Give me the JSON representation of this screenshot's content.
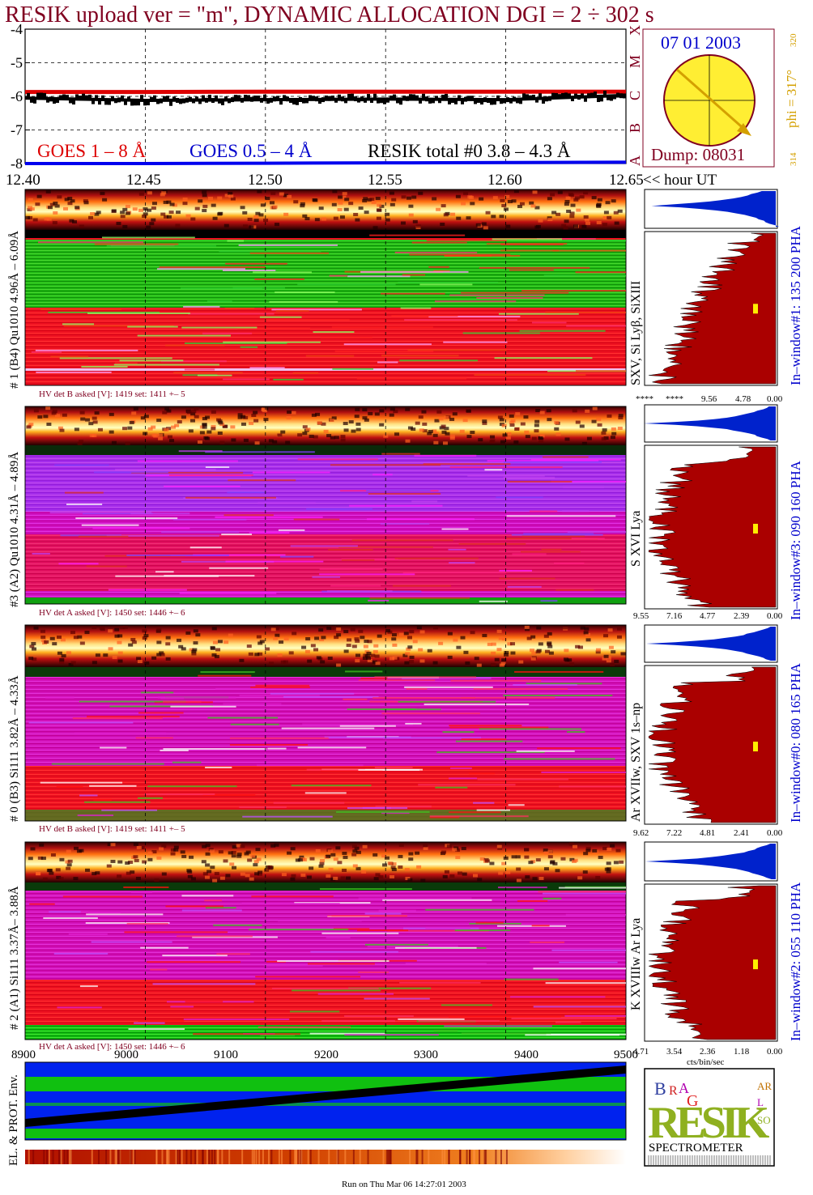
{
  "header": {
    "title": "RESIK upload ver = \"m\", DYNAMIC ALLOCATION  DGI =   2 ÷ 302 s",
    "date": "07 01 2003",
    "dump": "Dump: 08031",
    "phi": "phi = 317°",
    "phi_top": "320",
    "phi_bot": "314",
    "goes_classes": [
      "A",
      "B",
      "C",
      "M",
      "X"
    ],
    "run_footer": "Run on Thu Mar 06 14:27:01 2003",
    "colors": {
      "title": "#800020",
      "blue": "#0000cc",
      "red": "#dd0000",
      "gold": "#d4a000",
      "hist_red": "#aa0000",
      "hist_blue": "#0022cc"
    }
  },
  "goes": {
    "y_ticks": [
      "-4",
      "-5",
      "-6",
      "-7",
      "-8"
    ],
    "time_ticks": [
      "12.40",
      "12.45",
      "12.50",
      "12.55",
      "12.60",
      "12.65"
    ],
    "time_suffix": "<< hour UT",
    "legend": {
      "red": "GOES 1 – 8 Å",
      "blue": "GOES 0.5 – 4 Å",
      "black": "RESIK total #0  3.8 – 4.3 Å"
    }
  },
  "panels": [
    {
      "label": "# 1 (B4) Qu1010 4.96Å – 6.09Å",
      "line_id": "SXV, Si Lyβ, SiXIII",
      "window": "In–window#1:  135 200 PHA",
      "hv": "HV det B asked [V]:  1419 set:  1411  +–    5",
      "hist_ticks": [
        "****",
        "****",
        "9.56",
        "4.78",
        "0.00"
      ]
    },
    {
      "label": "#3 (A2) Qu1010  4.31Å – 4.89Å",
      "line_id": "S XVI Lya",
      "window": "In–window#3:  090 160 PHA",
      "hv": "HV det A asked [V]:  1450 set:  1446  +–    6",
      "hist_ticks": [
        "9.55",
        "7.16",
        "4.77",
        "2.39",
        "0.00"
      ]
    },
    {
      "label": "# 0 (B3) Si111  3.82Å – 4.33Å",
      "line_id": "Ar XVIIw,  SXV 1s–np",
      "window": "In–window#0:  080 165 PHA",
      "hv": "HV det B asked [V]:  1419 set:  1411  +–    5",
      "hist_ticks": [
        "9.62",
        "7.22",
        "4.81",
        "2.41",
        "0.00"
      ]
    },
    {
      "label": "# 2 (A1) Si111  3.37Å– 3.88Å",
      "line_id": "K XVIIIw  Ar Lya",
      "window": "In–window#2:  055 110 PHA",
      "hv": "HV det A asked [V]:  1450 set:  1446  +–    6",
      "hist_ticks": [
        "4.71",
        "3.54",
        "2.36",
        "1.18",
        "0.00"
      ]
    }
  ],
  "hist_xlabel": "cts/bin/sec",
  "env": {
    "x_ticks": [
      "8900",
      "9000",
      "9100",
      "9200",
      "9300",
      "9400",
      "9500"
    ],
    "label": "EL. & PROT. Env."
  },
  "logo": {
    "big": "RESIK",
    "parts": [
      "B",
      "R",
      "A",
      "G",
      "SO",
      "L",
      "AR"
    ],
    "caption": "SPECTROMETER"
  },
  "chart_data": [
    {
      "type": "line",
      "title": "RESIK upload ver = \"m\", DYNAMIC ALLOCATION  DGI =   2 ÷ 302 s",
      "xlabel": "<< hour UT",
      "ylabel": "",
      "xlim": [
        12.4,
        12.65
      ],
      "ylim": [
        -8,
        -4
      ],
      "x": [
        12.4,
        12.45,
        12.5,
        12.55,
        12.6,
        12.65
      ],
      "series": [
        {
          "name": "GOES 1 – 8 Å",
          "values": [
            -5.87,
            -5.87,
            -5.86,
            -5.86,
            -5.86,
            -5.86
          ]
        },
        {
          "name": "GOES 0.5 – 4 Å",
          "values": [
            -8.0,
            -8.0,
            -7.99,
            -7.98,
            -7.97,
            -7.96
          ]
        },
        {
          "name": "RESIK total #0  3.8 – 4.3 Å",
          "values": [
            -6.05,
            -6.12,
            -6.1,
            -6.08,
            -6.1,
            -5.97
          ]
        }
      ]
    },
    {
      "type": "heatmap",
      "x_ticks": [
        8900,
        9000,
        9100,
        9200,
        9300,
        9400,
        9500
      ],
      "ylabel": "EL. & PROT. Env."
    }
  ]
}
